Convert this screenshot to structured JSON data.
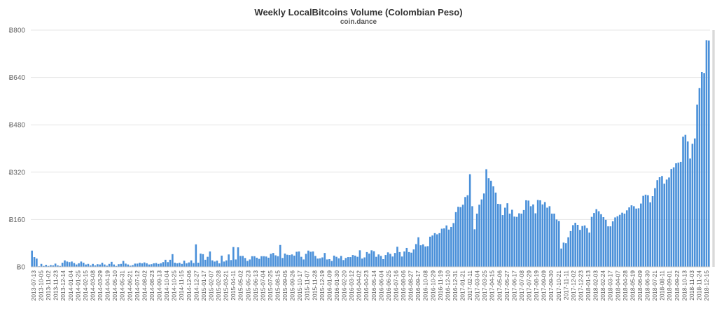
{
  "chart_data": {
    "type": "bar",
    "title": "Weekly LocalBitcoins Volume (Colombian Peso)",
    "subtitle": "coin.dance",
    "ylim": [
      0,
      800
    ],
    "ytick_labels": [
      "Ƀ0",
      "Ƀ160",
      "Ƀ320",
      "Ƀ480",
      "Ƀ640",
      "Ƀ800"
    ],
    "ytick_values": [
      0,
      160,
      320,
      480,
      640,
      800
    ],
    "grid": true,
    "bar_color": "#4a90d9",
    "highlight_color": "#d9d9d9",
    "x_labels": [
      "2013-07-13",
      "2013-10-05",
      "2013-11-02",
      "2013-11-23",
      "2013-12-14",
      "2014-01-04",
      "2014-01-25",
      "2014-02-15",
      "2014-03-08",
      "2014-03-29",
      "2014-04-19",
      "2014-05-10",
      "2014-05-31",
      "2014-06-21",
      "2014-07-12",
      "2014-08-02",
      "2014-08-23",
      "2014-09-13",
      "2014-10-04",
      "2014-10-25",
      "2014-11-15",
      "2014-12-06",
      "2014-12-27",
      "2015-01-17",
      "2015-02-07",
      "2015-02-28",
      "2015-03-21",
      "2015-04-11",
      "2015-05-02",
      "2015-05-23",
      "2015-06-13",
      "2015-07-04",
      "2015-07-25",
      "2015-08-15",
      "2015-09-05",
      "2015-09-26",
      "2015-10-17",
      "2015-11-07",
      "2015-11-28",
      "2015-12-19",
      "2016-01-09",
      "2016-01-30",
      "2016-02-20",
      "2016-03-12",
      "2016-04-02",
      "2016-04-23",
      "2016-05-14",
      "2016-06-04",
      "2016-06-25",
      "2016-07-16",
      "2016-08-06",
      "2016-08-27",
      "2016-09-17",
      "2016-10-08",
      "2016-10-29",
      "2016-11-19",
      "2016-12-10",
      "2016-12-31",
      "2017-01-21",
      "2017-02-11",
      "2017-03-04",
      "2017-03-25",
      "2017-04-15",
      "2017-05-06",
      "2017-05-27",
      "2017-06-17",
      "2017-07-08",
      "2017-07-29",
      "2017-08-19",
      "2017-09-09",
      "2017-09-30",
      "2017-10-21",
      "2017-11-11",
      "2017-12-02",
      "2017-12-23",
      "2018-01-13",
      "2018-02-03",
      "2018-02-24",
      "2018-03-17",
      "2018-04-07",
      "2018-04-28",
      "2018-05-19",
      "2018-06-09",
      "2018-06-30",
      "2018-07-21",
      "2018-08-11",
      "2018-09-01",
      "2018-09-22",
      "2018-10-13",
      "2018-11-03",
      "2018-11-24",
      "2018-12-15"
    ],
    "values": [
      55,
      33,
      28,
      2,
      10,
      3,
      7,
      3,
      6,
      5,
      11,
      5,
      3,
      14,
      22,
      18,
      16,
      18,
      13,
      8,
      12,
      18,
      14,
      8,
      10,
      5,
      10,
      5,
      9,
      8,
      14,
      8,
      4,
      10,
      17,
      8,
      3,
      9,
      10,
      20,
      11,
      8,
      4,
      6,
      11,
      11,
      14,
      12,
      15,
      12,
      8,
      9,
      12,
      13,
      10,
      12,
      16,
      24,
      16,
      24,
      43,
      14,
      12,
      14,
      10,
      21,
      12,
      15,
      22,
      13,
      76,
      14,
      45,
      43,
      24,
      34,
      52,
      22,
      18,
      21,
      12,
      38,
      18,
      22,
      42,
      23,
      67,
      25,
      66,
      37,
      37,
      30,
      20,
      25,
      36,
      36,
      31,
      27,
      36,
      36,
      35,
      31,
      44,
      47,
      39,
      36,
      74,
      30,
      45,
      41,
      40,
      42,
      38,
      51,
      52,
      34,
      25,
      44,
      55,
      51,
      52,
      37,
      28,
      29,
      32,
      47,
      25,
      26,
      20,
      38,
      34,
      29,
      37,
      23,
      30,
      33,
      33,
      40,
      38,
      34,
      56,
      28,
      32,
      50,
      45,
      56,
      53,
      34,
      42,
      37,
      26,
      40,
      49,
      44,
      35,
      47,
      68,
      50,
      35,
      52,
      64,
      50,
      48,
      59,
      77,
      100,
      73,
      76,
      69,
      70,
      102,
      106,
      114,
      110,
      114,
      129,
      130,
      140,
      126,
      135,
      148,
      185,
      203,
      202,
      210,
      236,
      242,
      313,
      205,
      127,
      180,
      210,
      228,
      248,
      330,
      300,
      291,
      272,
      251,
      213,
      212,
      175,
      200,
      215,
      180,
      193,
      170,
      169,
      181,
      180,
      192,
      225,
      224,
      205,
      211,
      181,
      226,
      225,
      211,
      219,
      200,
      205,
      180,
      180,
      160,
      155,
      62,
      82,
      80,
      100,
      121,
      141,
      149,
      142,
      125,
      138,
      140,
      131,
      116,
      169,
      182,
      195,
      188,
      178,
      168,
      159,
      137,
      137,
      154,
      167,
      171,
      176,
      183,
      180,
      191,
      201,
      208,
      205,
      197,
      198,
      214,
      240,
      244,
      242,
      218,
      239,
      266,
      293,
      303,
      307,
      281,
      295,
      302,
      331,
      336,
      350,
      352,
      355,
      440,
      446,
      424,
      366,
      416,
      434,
      548,
      604,
      658,
      655,
      766,
      765
    ],
    "highlight_index": 291
  }
}
